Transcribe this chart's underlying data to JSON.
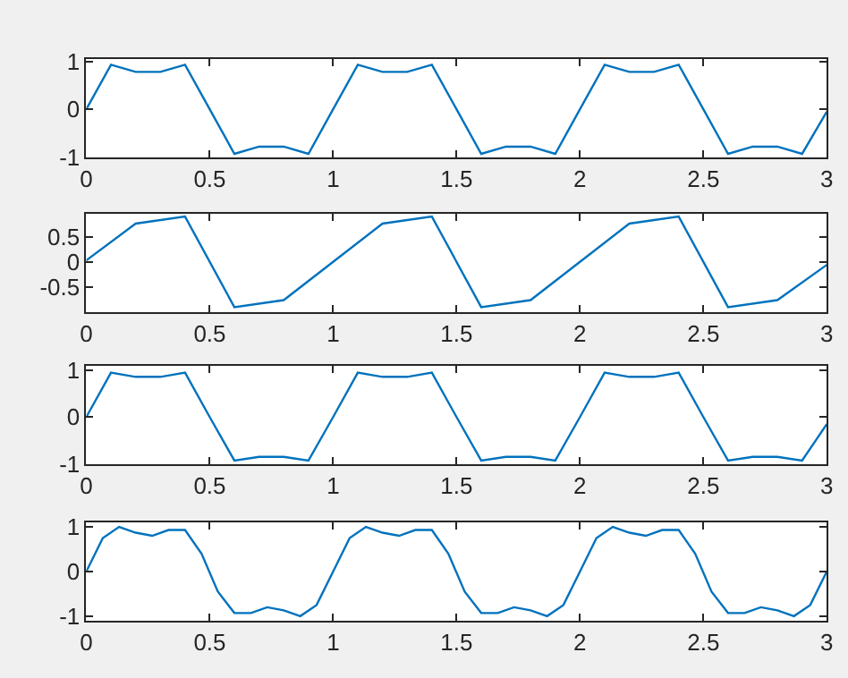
{
  "chart_data": [
    {
      "type": "line",
      "x": [
        0,
        0.1,
        0.2,
        0.3,
        0.4,
        0.5,
        0.6,
        0.7,
        0.8,
        0.9,
        1,
        1.1,
        1.2,
        1.3,
        1.4,
        1.5,
        1.6,
        1.7,
        1.8,
        1.9,
        2,
        2.1,
        2.2,
        2.3,
        2.4,
        2.5,
        2.6,
        2.7,
        2.8,
        2.9,
        3
      ],
      "series": [
        {
          "color": "#0072bd",
          "values": [
            0,
            0.93,
            0.78,
            0.78,
            0.93,
            0,
            -0.93,
            -0.78,
            -0.78,
            -0.93,
            0,
            0.93,
            0.78,
            0.78,
            0.93,
            0,
            -0.93,
            -0.78,
            -0.78,
            -0.93,
            0,
            0.93,
            0.78,
            0.78,
            0.93,
            0,
            -0.93,
            -0.78,
            -0.78,
            -0.93,
            -0.05
          ]
        }
      ],
      "xlim": [
        0,
        3
      ],
      "xticks": [
        0,
        0.5,
        1,
        1.5,
        2,
        2.5,
        3
      ],
      "ylim": [
        -1,
        1.05
      ],
      "yticks": [
        -1,
        0,
        1
      ]
    },
    {
      "type": "line",
      "x": [
        0,
        0.2,
        0.4,
        0.6,
        0.8,
        1,
        1.2,
        1.4,
        1.6,
        1.8,
        2,
        2.2,
        2.4,
        2.6,
        2.8,
        3
      ],
      "series": [
        {
          "color": "#0072bd",
          "values": [
            0.03,
            0.76,
            0.9,
            -0.9,
            -0.76,
            0,
            0.76,
            0.9,
            -0.9,
            -0.76,
            0,
            0.76,
            0.9,
            -0.9,
            -0.76,
            -0.06
          ]
        }
      ],
      "xlim": [
        0,
        3
      ],
      "xticks": [
        0,
        0.5,
        1,
        1.5,
        2,
        2.5,
        3
      ],
      "ylim": [
        -1,
        0.95
      ],
      "yticks": [
        -0.5,
        0,
        0.5
      ]
    },
    {
      "type": "line",
      "x": [
        0,
        0.1,
        0.2,
        0.3,
        0.4,
        0.5,
        0.6,
        0.7,
        0.8,
        0.9,
        1,
        1.1,
        1.2,
        1.3,
        1.4,
        1.5,
        1.6,
        1.7,
        1.8,
        1.9,
        2,
        2.1,
        2.2,
        2.3,
        2.4,
        2.5,
        2.6,
        2.7,
        2.8,
        2.9,
        3
      ],
      "series": [
        {
          "color": "#0072bd",
          "values": [
            0,
            0.95,
            0.86,
            0.86,
            0.95,
            0,
            -0.93,
            -0.85,
            -0.85,
            -0.93,
            0,
            0.95,
            0.86,
            0.86,
            0.95,
            0,
            -0.93,
            -0.85,
            -0.85,
            -0.93,
            0,
            0.95,
            0.86,
            0.86,
            0.95,
            0,
            -0.93,
            -0.85,
            -0.85,
            -0.93,
            -0.15
          ]
        }
      ],
      "xlim": [
        0,
        3
      ],
      "xticks": [
        0,
        0.5,
        1,
        1.5,
        2,
        2.5,
        3
      ],
      "ylim": [
        -1,
        1.1
      ],
      "yticks": [
        -1,
        0,
        1
      ]
    },
    {
      "type": "line",
      "x": [
        0,
        0.067,
        0.133,
        0.2,
        0.267,
        0.333,
        0.4,
        0.467,
        0.533,
        0.6,
        0.667,
        0.733,
        0.8,
        0.867,
        0.933,
        1,
        1.067,
        1.133,
        1.2,
        1.267,
        1.333,
        1.4,
        1.467,
        1.533,
        1.6,
        1.667,
        1.733,
        1.8,
        1.867,
        1.933,
        2,
        2.067,
        2.133,
        2.2,
        2.267,
        2.333,
        2.4,
        2.467,
        2.533,
        2.6,
        2.667,
        2.733,
        2.8,
        2.867,
        2.933,
        3
      ],
      "series": [
        {
          "color": "#0072bd",
          "values": [
            0,
            0.75,
            1.0,
            0.87,
            0.8,
            0.93,
            0.93,
            0.4,
            -0.45,
            -0.93,
            -0.93,
            -0.8,
            -0.87,
            -1.0,
            -0.75,
            0,
            0.75,
            1.0,
            0.87,
            0.8,
            0.93,
            0.93,
            0.4,
            -0.45,
            -0.93,
            -0.93,
            -0.8,
            -0.87,
            -1.0,
            -0.75,
            0,
            0.75,
            1.0,
            0.87,
            0.8,
            0.93,
            0.93,
            0.4,
            -0.45,
            -0.93,
            -0.93,
            -0.8,
            -0.87,
            -1.0,
            -0.75,
            0
          ]
        }
      ],
      "xlim": [
        0,
        3
      ],
      "xticks": [
        0,
        0.5,
        1,
        1.5,
        2,
        2.5,
        3
      ],
      "ylim": [
        -1.1,
        1.1
      ],
      "yticks": [
        -1,
        0,
        1
      ]
    }
  ]
}
